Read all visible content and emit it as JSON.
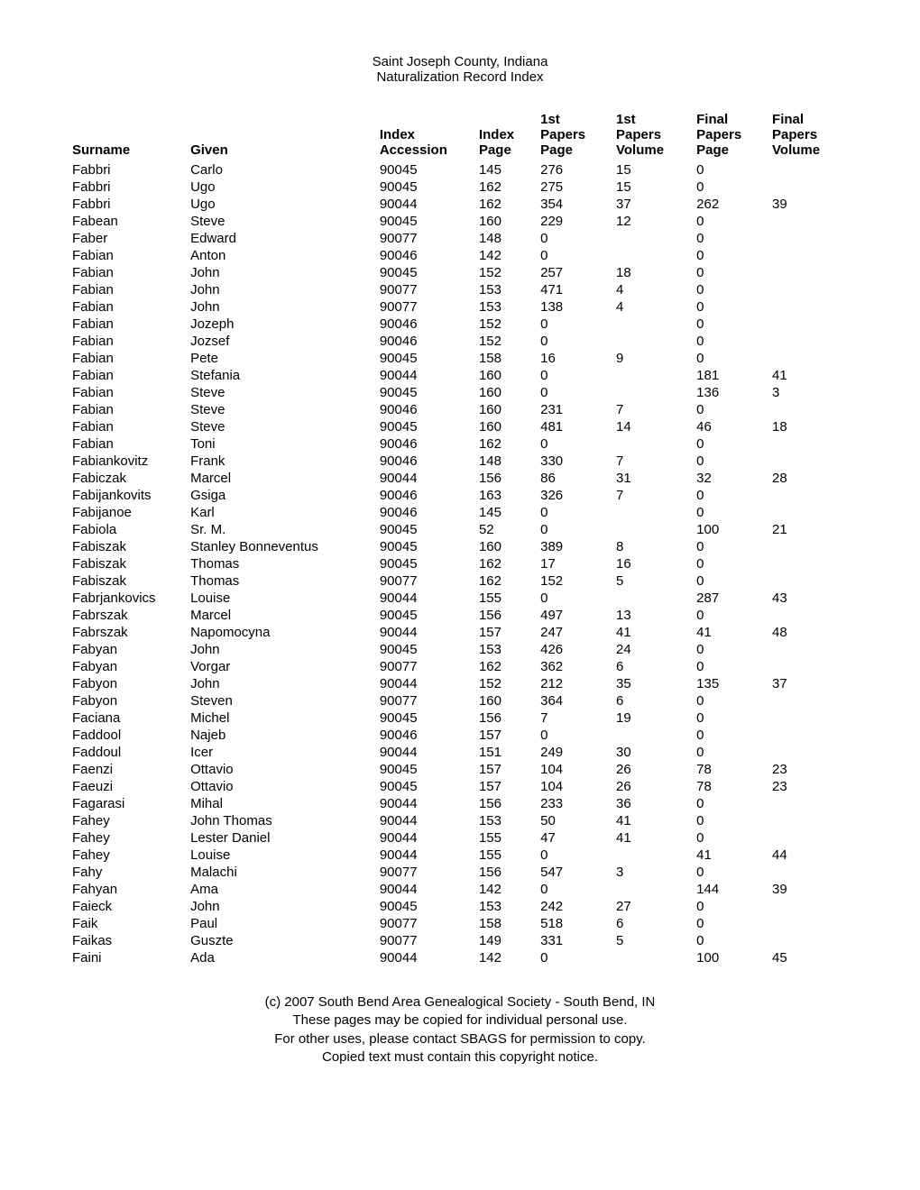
{
  "heading": {
    "line1": "Saint Joseph County, Indiana",
    "line2": "Naturalization  Record Index"
  },
  "columns": {
    "surname": "Surname",
    "given": "Given",
    "acc_l1": "Index",
    "acc_l2": "Accession",
    "ipage_l1": "Index",
    "ipage_l2": "Page",
    "fppage_l1": "1st",
    "fppage_l2": "Papers",
    "fppage_l3": "Page",
    "fpvol_l1": "1st",
    "fpvol_l2": "Papers",
    "fpvol_l3": "Volume",
    "fnpage_l1": "Final",
    "fnpage_l2": "Papers",
    "fnpage_l3": "Page",
    "fnvol_l1": "Final",
    "fnvol_l2": "Papers",
    "fnvol_l3": "Volume"
  },
  "rows": [
    {
      "surname": "Fabbri",
      "given": "Carlo",
      "acc": "90045",
      "ipage": "145",
      "fppage": "276",
      "fpvol": "15",
      "fnpage": "0",
      "fnvol": ""
    },
    {
      "surname": "Fabbri",
      "given": "Ugo",
      "acc": "90045",
      "ipage": "162",
      "fppage": "275",
      "fpvol": "15",
      "fnpage": "0",
      "fnvol": ""
    },
    {
      "surname": "Fabbri",
      "given": "Ugo",
      "acc": "90044",
      "ipage": "162",
      "fppage": "354",
      "fpvol": "37",
      "fnpage": "262",
      "fnvol": "39"
    },
    {
      "surname": "Fabean",
      "given": "Steve",
      "acc": "90045",
      "ipage": "160",
      "fppage": "229",
      "fpvol": "12",
      "fnpage": "0",
      "fnvol": ""
    },
    {
      "surname": "Faber",
      "given": "Edward",
      "acc": "90077",
      "ipage": "148",
      "fppage": "0",
      "fpvol": "",
      "fnpage": "0",
      "fnvol": ""
    },
    {
      "surname": "Fabian",
      "given": "Anton",
      "acc": "90046",
      "ipage": "142",
      "fppage": "0",
      "fpvol": "",
      "fnpage": "0",
      "fnvol": ""
    },
    {
      "surname": "Fabian",
      "given": "John",
      "acc": "90045",
      "ipage": "152",
      "fppage": "257",
      "fpvol": "18",
      "fnpage": "0",
      "fnvol": ""
    },
    {
      "surname": "Fabian",
      "given": "John",
      "acc": "90077",
      "ipage": "153",
      "fppage": "471",
      "fpvol": "4",
      "fnpage": "0",
      "fnvol": ""
    },
    {
      "surname": "Fabian",
      "given": "John",
      "acc": "90077",
      "ipage": "153",
      "fppage": "138",
      "fpvol": "4",
      "fnpage": "0",
      "fnvol": ""
    },
    {
      "surname": "Fabian",
      "given": "Jozeph",
      "acc": "90046",
      "ipage": "152",
      "fppage": "0",
      "fpvol": "",
      "fnpage": "0",
      "fnvol": ""
    },
    {
      "surname": "Fabian",
      "given": "Jozsef",
      "acc": "90046",
      "ipage": "152",
      "fppage": "0",
      "fpvol": "",
      "fnpage": "0",
      "fnvol": ""
    },
    {
      "surname": "Fabian",
      "given": "Pete",
      "acc": "90045",
      "ipage": "158",
      "fppage": "16",
      "fpvol": "9",
      "fnpage": "0",
      "fnvol": ""
    },
    {
      "surname": "Fabian",
      "given": "Stefania",
      "acc": "90044",
      "ipage": "160",
      "fppage": "0",
      "fpvol": "",
      "fnpage": "181",
      "fnvol": "41"
    },
    {
      "surname": "Fabian",
      "given": "Steve",
      "acc": "90045",
      "ipage": "160",
      "fppage": "0",
      "fpvol": "",
      "fnpage": "136",
      "fnvol": "3"
    },
    {
      "surname": "Fabian",
      "given": "Steve",
      "acc": "90046",
      "ipage": "160",
      "fppage": "231",
      "fpvol": "7",
      "fnpage": "0",
      "fnvol": ""
    },
    {
      "surname": "Fabian",
      "given": "Steve",
      "acc": "90045",
      "ipage": "160",
      "fppage": "481",
      "fpvol": "14",
      "fnpage": "46",
      "fnvol": "18"
    },
    {
      "surname": "Fabian",
      "given": "Toni",
      "acc": "90046",
      "ipage": "162",
      "fppage": "0",
      "fpvol": "",
      "fnpage": "0",
      "fnvol": ""
    },
    {
      "surname": "Fabiankovitz",
      "given": "Frank",
      "acc": "90046",
      "ipage": "148",
      "fppage": "330",
      "fpvol": "7",
      "fnpage": "0",
      "fnvol": ""
    },
    {
      "surname": "Fabiczak",
      "given": "Marcel",
      "acc": "90044",
      "ipage": "156",
      "fppage": "86",
      "fpvol": "31",
      "fnpage": "32",
      "fnvol": "28"
    },
    {
      "surname": "Fabijankovits",
      "given": "Gsiga",
      "acc": "90046",
      "ipage": "163",
      "fppage": "326",
      "fpvol": "7",
      "fnpage": "0",
      "fnvol": ""
    },
    {
      "surname": "Fabijanoe",
      "given": "Karl",
      "acc": "90046",
      "ipage": "145",
      "fppage": "0",
      "fpvol": "",
      "fnpage": "0",
      "fnvol": ""
    },
    {
      "surname": "Fabiola",
      "given": "Sr. M.",
      "acc": "90045",
      "ipage": "52",
      "fppage": "0",
      "fpvol": "",
      "fnpage": "100",
      "fnvol": "21"
    },
    {
      "surname": "Fabiszak",
      "given": "Stanley Bonneventus",
      "acc": "90045",
      "ipage": "160",
      "fppage": "389",
      "fpvol": "8",
      "fnpage": "0",
      "fnvol": ""
    },
    {
      "surname": "Fabiszak",
      "given": "Thomas",
      "acc": "90045",
      "ipage": "162",
      "fppage": "17",
      "fpvol": "16",
      "fnpage": "0",
      "fnvol": ""
    },
    {
      "surname": "Fabiszak",
      "given": "Thomas",
      "acc": "90077",
      "ipage": "162",
      "fppage": "152",
      "fpvol": "5",
      "fnpage": "0",
      "fnvol": ""
    },
    {
      "surname": "Fabrjankovics",
      "given": "Louise",
      "acc": "90044",
      "ipage": "155",
      "fppage": "0",
      "fpvol": "",
      "fnpage": "287",
      "fnvol": "43"
    },
    {
      "surname": "Fabrszak",
      "given": "Marcel",
      "acc": "90045",
      "ipage": "156",
      "fppage": "497",
      "fpvol": "13",
      "fnpage": "0",
      "fnvol": ""
    },
    {
      "surname": "Fabrszak",
      "given": "Napomocyna",
      "acc": "90044",
      "ipage": "157",
      "fppage": "247",
      "fpvol": "41",
      "fnpage": "41",
      "fnvol": "48"
    },
    {
      "surname": "Fabyan",
      "given": "John",
      "acc": "90045",
      "ipage": "153",
      "fppage": "426",
      "fpvol": "24",
      "fnpage": "0",
      "fnvol": ""
    },
    {
      "surname": "Fabyan",
      "given": "Vorgar",
      "acc": "90077",
      "ipage": "162",
      "fppage": "362",
      "fpvol": "6",
      "fnpage": "0",
      "fnvol": ""
    },
    {
      "surname": "Fabyon",
      "given": "John",
      "acc": "90044",
      "ipage": "152",
      "fppage": "212",
      "fpvol": "35",
      "fnpage": "135",
      "fnvol": "37"
    },
    {
      "surname": "Fabyon",
      "given": "Steven",
      "acc": "90077",
      "ipage": "160",
      "fppage": "364",
      "fpvol": "6",
      "fnpage": "0",
      "fnvol": ""
    },
    {
      "surname": "Faciana",
      "given": "Michel",
      "acc": "90045",
      "ipage": "156",
      "fppage": "7",
      "fpvol": "19",
      "fnpage": "0",
      "fnvol": ""
    },
    {
      "surname": "Faddool",
      "given": "Najeb",
      "acc": "90046",
      "ipage": "157",
      "fppage": "0",
      "fpvol": "",
      "fnpage": "0",
      "fnvol": ""
    },
    {
      "surname": "Faddoul",
      "given": "Icer",
      "acc": "90044",
      "ipage": "151",
      "fppage": "249",
      "fpvol": "30",
      "fnpage": "0",
      "fnvol": ""
    },
    {
      "surname": "Faenzi",
      "given": "Ottavio",
      "acc": "90045",
      "ipage": "157",
      "fppage": "104",
      "fpvol": "26",
      "fnpage": "78",
      "fnvol": "23"
    },
    {
      "surname": "Faeuzi",
      "given": "Ottavio",
      "acc": "90045",
      "ipage": "157",
      "fppage": "104",
      "fpvol": "26",
      "fnpage": "78",
      "fnvol": "23"
    },
    {
      "surname": "Fagarasi",
      "given": "Mihal",
      "acc": "90044",
      "ipage": "156",
      "fppage": "233",
      "fpvol": "36",
      "fnpage": "0",
      "fnvol": ""
    },
    {
      "surname": "Fahey",
      "given": "John Thomas",
      "acc": "90044",
      "ipage": "153",
      "fppage": "50",
      "fpvol": "41",
      "fnpage": "0",
      "fnvol": ""
    },
    {
      "surname": "Fahey",
      "given": "Lester Daniel",
      "acc": "90044",
      "ipage": "155",
      "fppage": "47",
      "fpvol": "41",
      "fnpage": "0",
      "fnvol": ""
    },
    {
      "surname": "Fahey",
      "given": "Louise",
      "acc": "90044",
      "ipage": "155",
      "fppage": "0",
      "fpvol": "",
      "fnpage": "41",
      "fnvol": "44"
    },
    {
      "surname": "Fahy",
      "given": "Malachi",
      "acc": "90077",
      "ipage": "156",
      "fppage": "547",
      "fpvol": "3",
      "fnpage": "0",
      "fnvol": ""
    },
    {
      "surname": "Fahyan",
      "given": "Ama",
      "acc": "90044",
      "ipage": "142",
      "fppage": "0",
      "fpvol": "",
      "fnpage": "144",
      "fnvol": "39"
    },
    {
      "surname": "Faieck",
      "given": "John",
      "acc": "90045",
      "ipage": "153",
      "fppage": "242",
      "fpvol": "27",
      "fnpage": "0",
      "fnvol": ""
    },
    {
      "surname": "Faik",
      "given": "Paul",
      "acc": "90077",
      "ipage": "158",
      "fppage": "518",
      "fpvol": "6",
      "fnpage": "0",
      "fnvol": ""
    },
    {
      "surname": "Faikas",
      "given": "Guszte",
      "acc": "90077",
      "ipage": "149",
      "fppage": "331",
      "fpvol": "5",
      "fnpage": "0",
      "fnvol": ""
    },
    {
      "surname": "Faini",
      "given": "Ada",
      "acc": "90044",
      "ipage": "142",
      "fppage": "0",
      "fpvol": "",
      "fnpage": "100",
      "fnvol": "45"
    }
  ],
  "footer": {
    "line1": "(c) 2007 South Bend Area Genealogical Society - South Bend, IN",
    "line2": "These pages may be copied for individual personal use.",
    "line3": "For other uses, please contact SBAGS for permission to copy.",
    "line4": "Copied text must contain this copyright notice."
  }
}
